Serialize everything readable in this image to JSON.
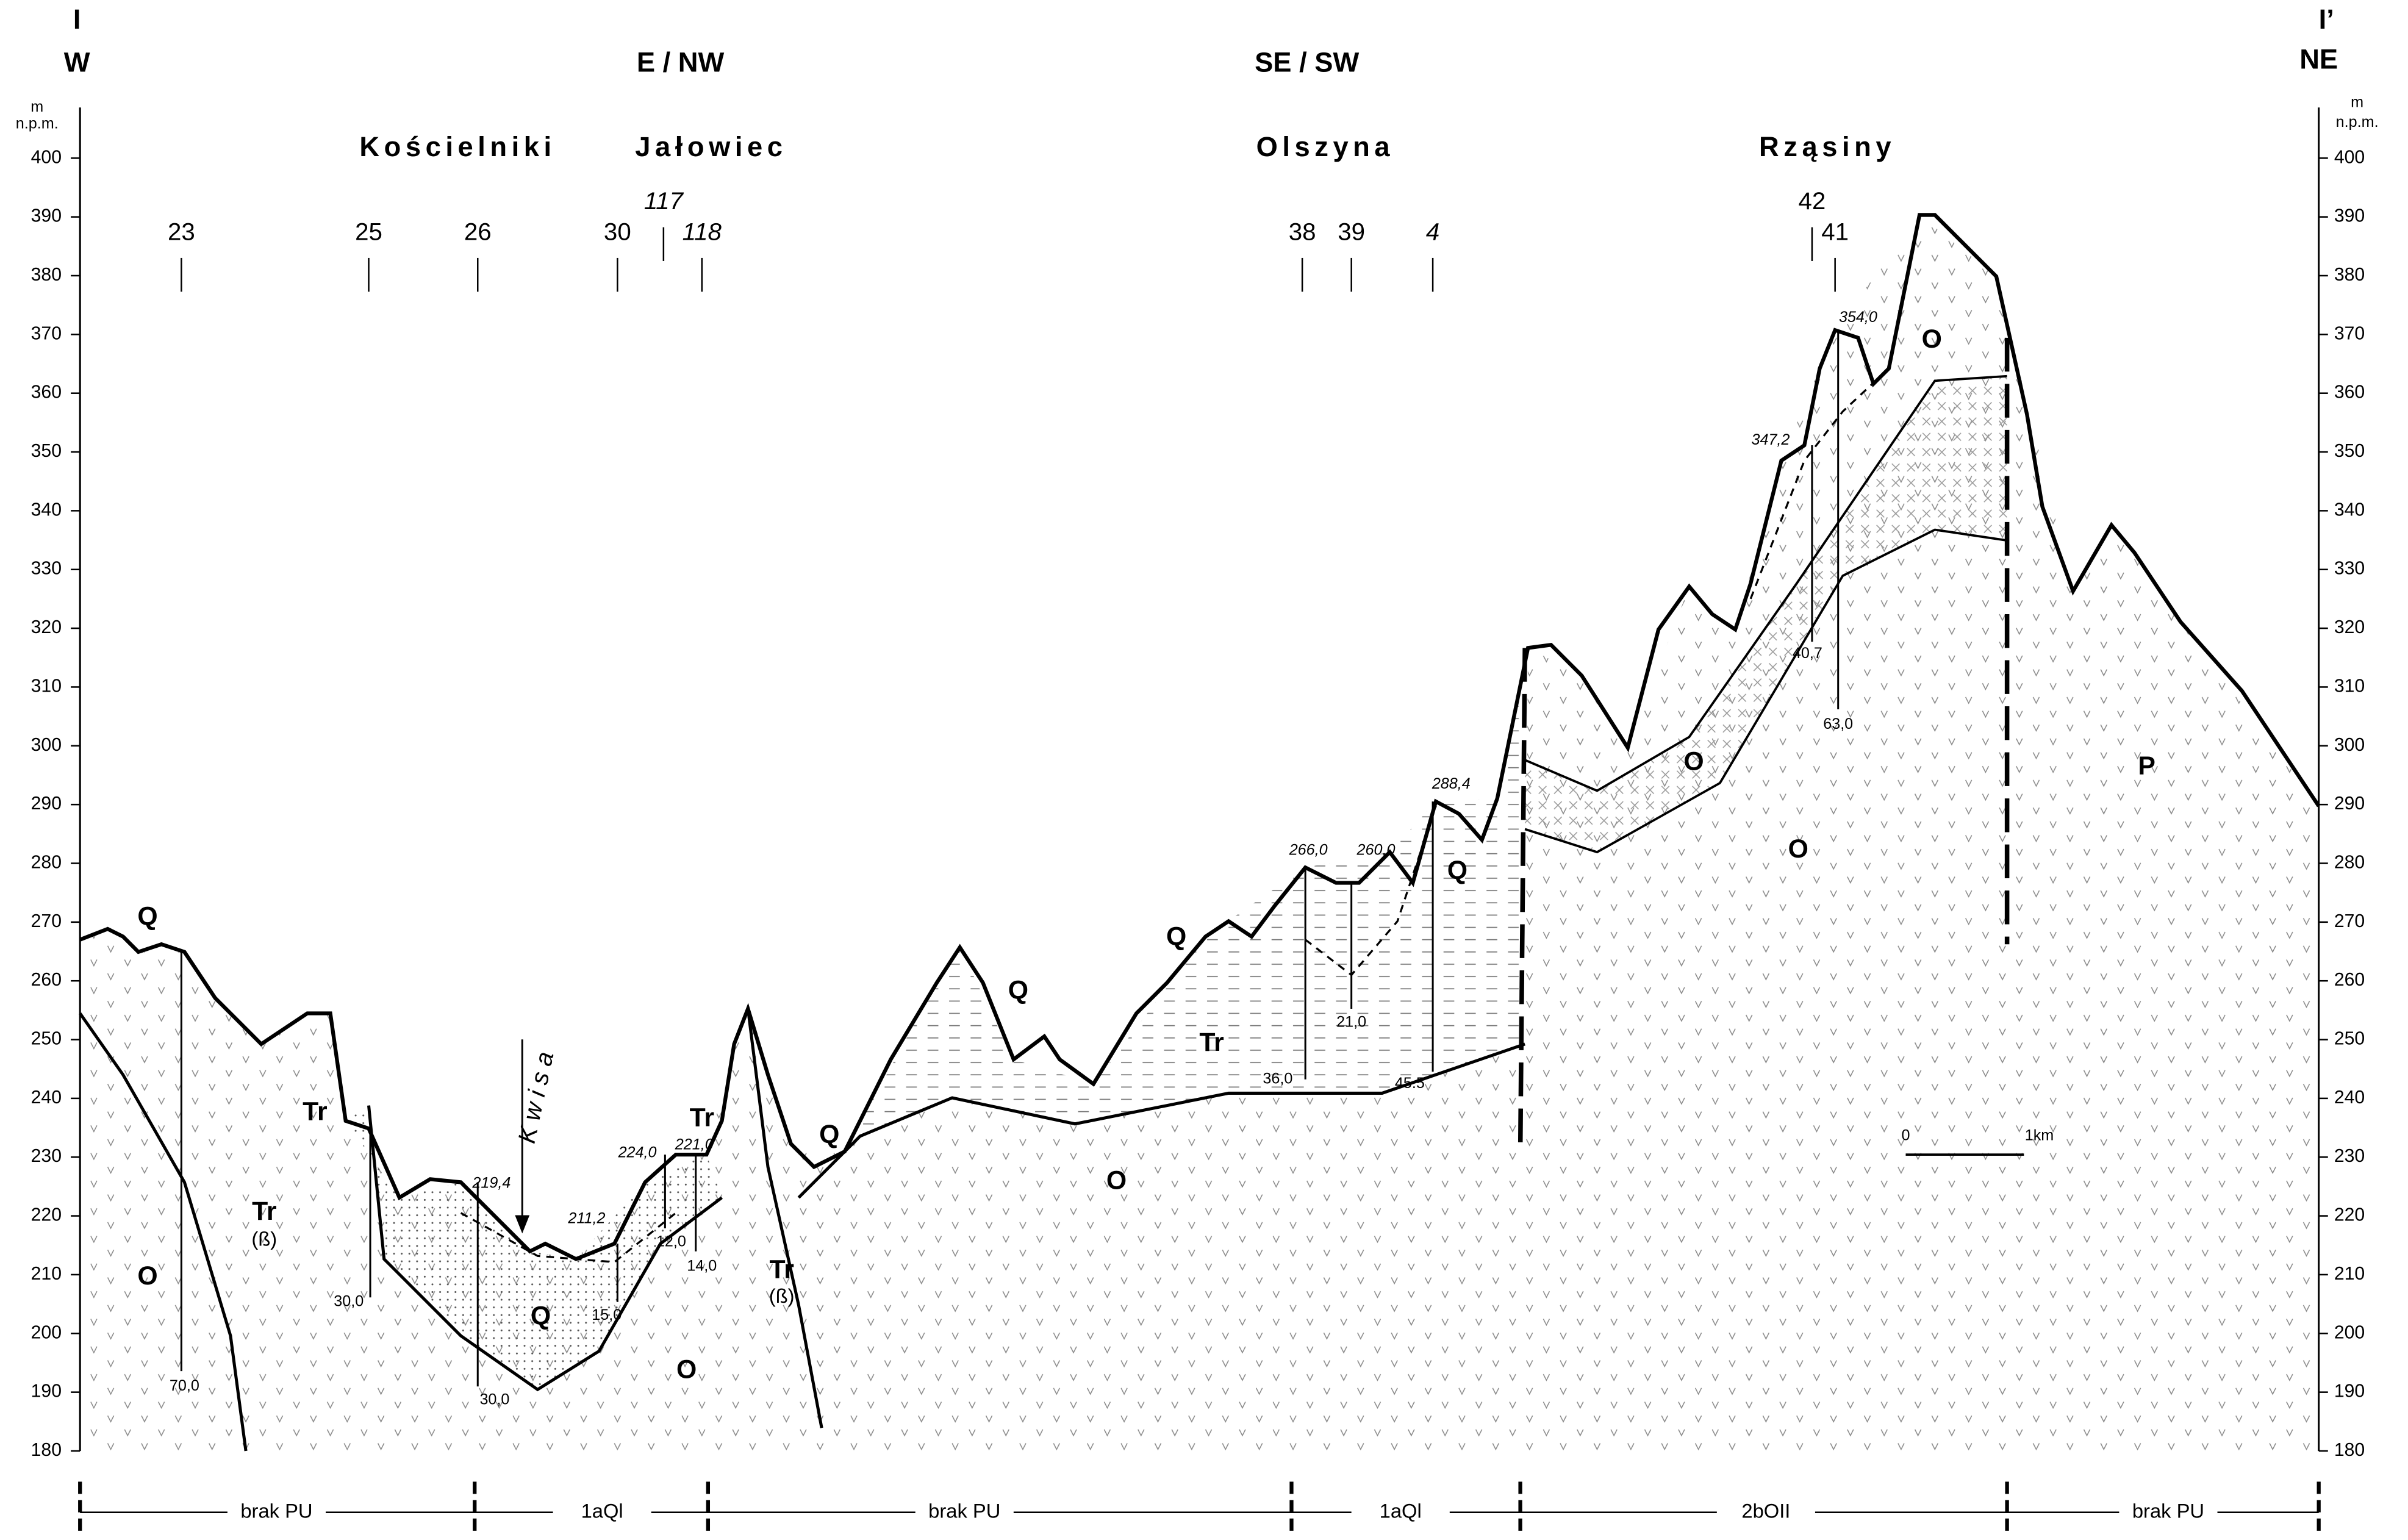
{
  "header": {
    "left_section": "I",
    "right_section": "I’",
    "left_direction": "W",
    "right_direction": "NE",
    "mid_directions": [
      "E / NW",
      "SE / SW"
    ]
  },
  "localities": [
    "Kościelniki",
    "Jałowiec",
    "Olszyna",
    "Rząsiny"
  ],
  "axis": {
    "unit": "m",
    "datum": "n.p.m.",
    "ticks": [
      180,
      190,
      200,
      210,
      220,
      230,
      240,
      250,
      260,
      270,
      280,
      290,
      300,
      310,
      320,
      330,
      340,
      350,
      360,
      370,
      380,
      390,
      400
    ]
  },
  "boreholes": [
    "23",
    "25",
    "26",
    "30",
    "117",
    "118",
    "38",
    "39",
    "4",
    "42",
    "41"
  ],
  "units": [
    "Q",
    "Tr",
    "Tr",
    "(ß)",
    "O",
    "Q",
    "O",
    "Tr",
    "Tr",
    "(ß)",
    "Q",
    "Q",
    "Q",
    "Tr",
    "O",
    "Q",
    "O",
    "O",
    "O",
    "P"
  ],
  "depths": [
    "70,0",
    "30,0",
    "30,0",
    "15,0",
    "12,0",
    "14,0",
    "36,0",
    "21,0",
    "45.5",
    "40,7",
    "63,0"
  ],
  "elevations": [
    "219,4",
    "211,2",
    "224,0",
    "221,0",
    "266,0",
    "260,0",
    "288,4",
    "347,2",
    "354,0"
  ],
  "river": "K w i s a",
  "scale": {
    "start": "0",
    "end": "1km"
  },
  "zones": [
    "brak PU",
    "1aQl",
    "brak PU",
    "1aQl",
    "2bOII",
    "brak PU"
  ]
}
